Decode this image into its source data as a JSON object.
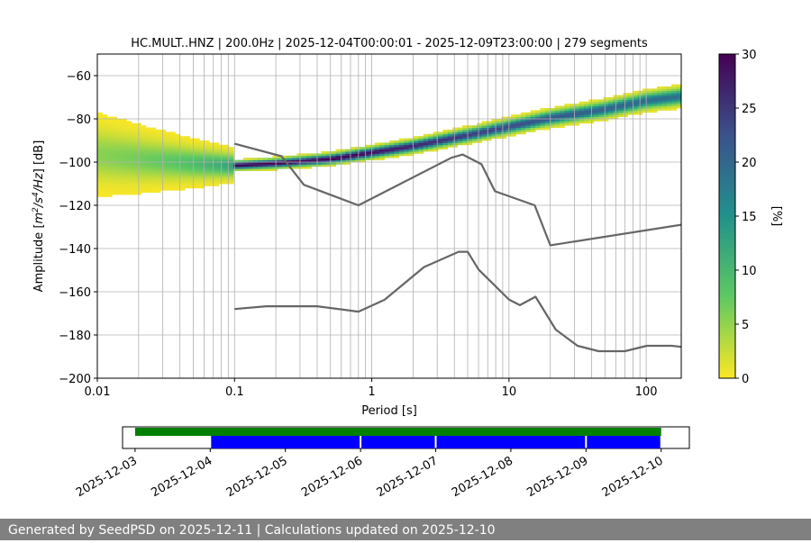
{
  "chart_data": [
    {
      "type": "heatmap",
      "title": "HC.MULT..HNZ | 200.0Hz | 2025-12-04T00:00:01 - 2025-12-09T23:00:00 | 279 segments",
      "xlabel": "Period [s]",
      "ylabel_parts": [
        "Amplitude [",
        "m",
        "2",
        "/s",
        "4",
        "/Hz",
        "] [dB]"
      ],
      "x_scale": "log",
      "xlim": [
        0.01,
        180
      ],
      "ylim": [
        -200,
        -50
      ],
      "x_ticks": [
        0.01,
        0.1,
        1,
        10,
        100
      ],
      "x_tick_labels": [
        "0.01",
        "0.1",
        "1",
        "10",
        "100"
      ],
      "y_ticks": [
        -200,
        -180,
        -160,
        -140,
        -120,
        -100,
        -80,
        -60
      ],
      "y_tick_labels": [
        "−200",
        "−180",
        "−160",
        "−140",
        "−120",
        "−100",
        "−80",
        "−60"
      ],
      "grid": true,
      "colorbar": {
        "label": "[%]",
        "range": [
          0,
          30
        ],
        "ticks": [
          0,
          5,
          10,
          15,
          20,
          25,
          30
        ],
        "tick_labels": [
          "0",
          "5",
          "10",
          "15",
          "20",
          "25",
          "30"
        ],
        "colormap": "viridis_r"
      },
      "psd_mode": {
        "periods": [
          0.01,
          0.02,
          0.05,
          0.1,
          0.2,
          0.5,
          1,
          2,
          5,
          10,
          20,
          50,
          100,
          180
        ],
        "db": [
          -97,
          -99,
          -101,
          -102,
          -101,
          -99,
          -96,
          -93,
          -88,
          -84,
          -80,
          -76,
          -72,
          -70
        ]
      },
      "series": [
        {
          "name": "",
          "periods": [
            0.1,
            0.17,
            0.4,
            0.8,
            1.24,
            2.4,
            4.3,
            5.0,
            6.0,
            10.0,
            12.0,
            15.6,
            21.9,
            31.6,
            45.0,
            70.0,
            101.0,
            154.0,
            180.0
          ],
          "db": [
            -168,
            -166.7,
            -166.7,
            -169.2,
            -163.7,
            -148.6,
            -141.5,
            -141.5,
            -149.7,
            -163.6,
            -166.2,
            -162.3,
            -177.5,
            -185.0,
            -187.5,
            -187.5,
            -185.0,
            -185.0,
            -185.5
          ]
        },
        {
          "name": "",
          "periods": [
            0.1,
            0.22,
            0.32,
            0.8,
            3.8,
            4.6,
            6.3,
            7.9,
            15.4,
            20.0,
            180.0
          ],
          "db": [
            -91.5,
            -97.3,
            -110.5,
            -120.0,
            -98.0,
            -96.5,
            -101.0,
            -113.5,
            -120.0,
            -138.5,
            -129.0
          ]
        }
      ]
    },
    {
      "type": "timeline",
      "x_tick_labels": [
        "2025-12-03",
        "2025-12-04",
        "2025-12-05",
        "2025-12-06",
        "2025-12-07",
        "2025-12-08",
        "2025-12-09",
        "2025-12-10"
      ],
      "x_start": "2025-12-02T20:00",
      "x_end": "2025-12-10T09:00",
      "available": [
        [
          "2025-12-03T00:00",
          "2025-12-10T00:00"
        ]
      ],
      "used": [
        [
          "2025-12-04T00:00",
          "2025-12-06T00:00"
        ],
        [
          "2025-12-06T00:00",
          "2025-12-07T00:00"
        ],
        [
          "2025-12-07T00:00",
          "2025-12-09T00:00"
        ],
        [
          "2025-12-09T00:00",
          "2025-12-10T00:00"
        ]
      ],
      "colors": {
        "available": "#008000",
        "used": "#0000ff"
      }
    }
  ],
  "footer": {
    "text": "Generated by SeedPSD on 2025-12-11 | Calculations updated on 2025-12-10"
  }
}
